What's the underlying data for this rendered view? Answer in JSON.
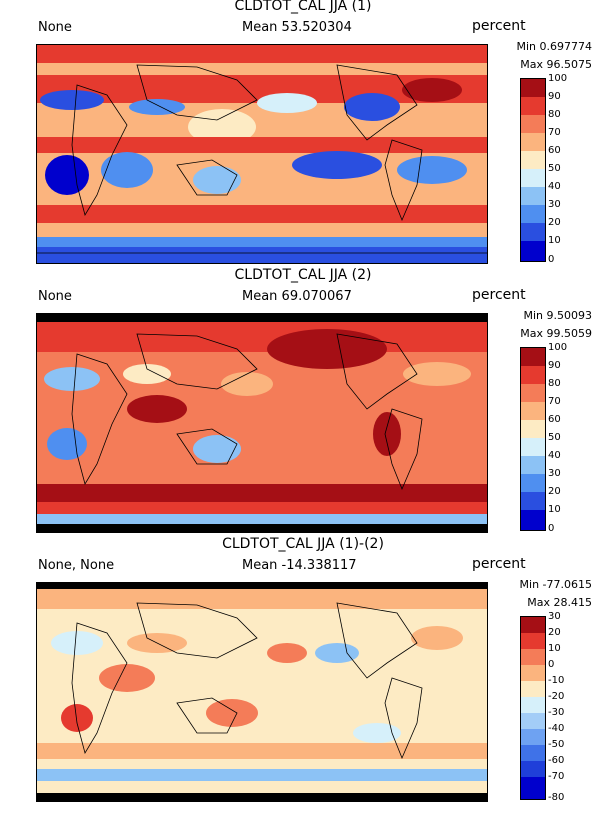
{
  "panels": [
    {
      "title": "CLDTOT_CAL JJA (1)",
      "left": "None",
      "mean": "Mean 53.520304",
      "units": "percent",
      "min": "Min 0.697774",
      "max": "Max 96.5075",
      "levels": [
        "0",
        "10",
        "20",
        "30",
        "40",
        "50",
        "60",
        "70",
        "80",
        "90",
        "100"
      ]
    },
    {
      "title": "CLDTOT_CAL JJA (2)",
      "left": "None",
      "mean": "Mean 69.070067",
      "units": "percent",
      "min": "Min 9.50093",
      "max": "Max 99.5059",
      "levels": [
        "0",
        "10",
        "20",
        "30",
        "40",
        "50",
        "60",
        "70",
        "80",
        "90",
        "100"
      ]
    },
    {
      "title": "CLDTOT_CAL JJA (1)-(2)",
      "left": "None, None",
      "mean": "Mean -14.338117",
      "units": "percent",
      "min": "Min -77.0615",
      "max": "Max 28.415",
      "levels": [
        "-80",
        "-70",
        "-60",
        "-50",
        "-40",
        "-30",
        "-20",
        "-10",
        "0",
        "10",
        "20",
        "30"
      ]
    }
  ],
  "colors": {
    "cmap10": [
      "#0000cd",
      "#2a4fe0",
      "#4f8ff0",
      "#8cc2f5",
      "#d6f0fa",
      "#fdebc4",
      "#fbb47e",
      "#f47c58",
      "#e53a2f",
      "#a50f15"
    ],
    "cmap11": [
      "#0000cd",
      "#1f3fd9",
      "#3f72e8",
      "#6ea2f2",
      "#a3cdf7",
      "#d6f0fa",
      "#fdebc4",
      "#fbb47e",
      "#f47c58",
      "#e53a2f",
      "#a50f15"
    ]
  }
}
